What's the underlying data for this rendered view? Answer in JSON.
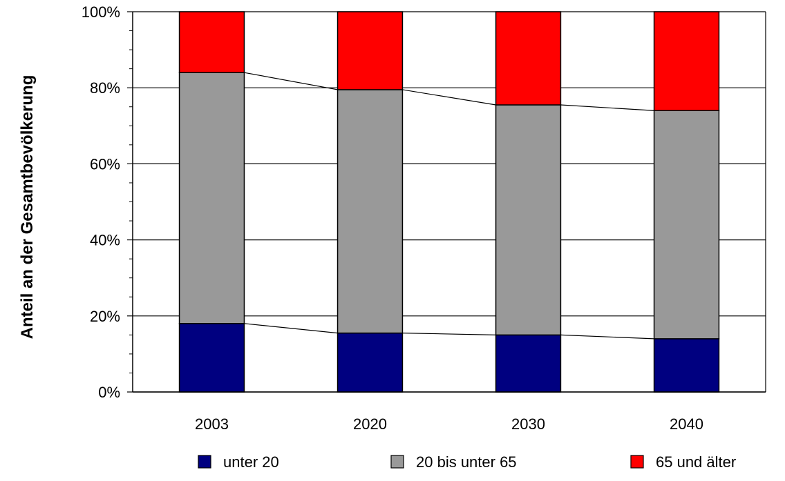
{
  "chart_data": {
    "type": "bar",
    "stacked": true,
    "percent_stacked": true,
    "categories": [
      "2003",
      "2020",
      "2030",
      "2040"
    ],
    "series": [
      {
        "name": "unter 20",
        "values": [
          18,
          15.5,
          15,
          14
        ],
        "color": "#000080"
      },
      {
        "name": "20 bis unter 65",
        "values": [
          66,
          64,
          60.5,
          60
        ],
        "color": "#999999"
      },
      {
        "name": "65 und älter",
        "values": [
          16,
          20.5,
          24.5,
          26
        ],
        "color": "#ff0000"
      }
    ],
    "connector_lines": true,
    "ylabel": "Anteil an der Gesamtbevölkerung",
    "xlabel": "",
    "ylim": [
      0,
      100
    ],
    "yticks": [
      "0%",
      "20%",
      "40%",
      "60%",
      "80%",
      "100%"
    ],
    "grid": true,
    "legend_position": "bottom"
  }
}
